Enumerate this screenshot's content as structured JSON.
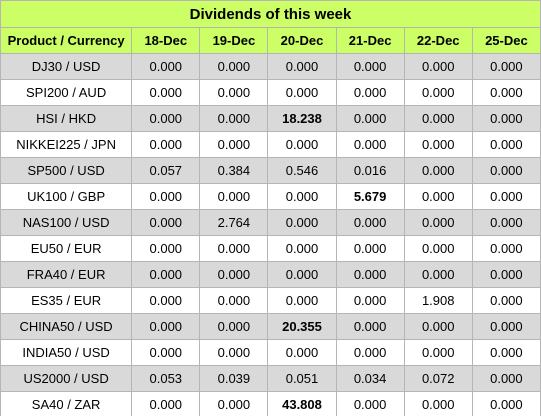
{
  "title": "Dividends of this week",
  "columns": [
    "Product / Currency",
    "18-Dec",
    "19-Dec",
    "20-Dec",
    "21-Dec",
    "22-Dec",
    "25-Dec"
  ],
  "rows": [
    {
      "product": "DJ30 / USD",
      "values": [
        "0.000",
        "0.000",
        "0.000",
        "0.000",
        "0.000",
        "0.000"
      ],
      "bold": [
        false,
        false,
        false,
        false,
        false,
        false
      ]
    },
    {
      "product": "SPI200 / AUD",
      "values": [
        "0.000",
        "0.000",
        "0.000",
        "0.000",
        "0.000",
        "0.000"
      ],
      "bold": [
        false,
        false,
        false,
        false,
        false,
        false
      ]
    },
    {
      "product": "HSI / HKD",
      "values": [
        "0.000",
        "0.000",
        "18.238",
        "0.000",
        "0.000",
        "0.000"
      ],
      "bold": [
        false,
        false,
        true,
        false,
        false,
        false
      ]
    },
    {
      "product": "NIKKEI225 / JPN",
      "values": [
        "0.000",
        "0.000",
        "0.000",
        "0.000",
        "0.000",
        "0.000"
      ],
      "bold": [
        false,
        false,
        false,
        false,
        false,
        false
      ]
    },
    {
      "product": "SP500 / USD",
      "values": [
        "0.057",
        "0.384",
        "0.546",
        "0.016",
        "0.000",
        "0.000"
      ],
      "bold": [
        false,
        false,
        false,
        false,
        false,
        false
      ]
    },
    {
      "product": "UK100 / GBP",
      "values": [
        "0.000",
        "0.000",
        "0.000",
        "5.679",
        "0.000",
        "0.000"
      ],
      "bold": [
        false,
        false,
        false,
        true,
        false,
        false
      ]
    },
    {
      "product": "NAS100 / USD",
      "values": [
        "0.000",
        "2.764",
        "0.000",
        "0.000",
        "0.000",
        "0.000"
      ],
      "bold": [
        false,
        false,
        false,
        false,
        false,
        false
      ]
    },
    {
      "product": "EU50 / EUR",
      "values": [
        "0.000",
        "0.000",
        "0.000",
        "0.000",
        "0.000",
        "0.000"
      ],
      "bold": [
        false,
        false,
        false,
        false,
        false,
        false
      ]
    },
    {
      "product": "FRA40 / EUR",
      "values": [
        "0.000",
        "0.000",
        "0.000",
        "0.000",
        "0.000",
        "0.000"
      ],
      "bold": [
        false,
        false,
        false,
        false,
        false,
        false
      ]
    },
    {
      "product": "ES35 / EUR",
      "values": [
        "0.000",
        "0.000",
        "0.000",
        "0.000",
        "1.908",
        "0.000"
      ],
      "bold": [
        false,
        false,
        false,
        false,
        false,
        false
      ]
    },
    {
      "product": "CHINA50 / USD",
      "values": [
        "0.000",
        "0.000",
        "20.355",
        "0.000",
        "0.000",
        "0.000"
      ],
      "bold": [
        false,
        false,
        true,
        false,
        false,
        false
      ]
    },
    {
      "product": "INDIA50 / USD",
      "values": [
        "0.000",
        "0.000",
        "0.000",
        "0.000",
        "0.000",
        "0.000"
      ],
      "bold": [
        false,
        false,
        false,
        false,
        false,
        false
      ]
    },
    {
      "product": "US2000 / USD",
      "values": [
        "0.053",
        "0.039",
        "0.051",
        "0.034",
        "0.072",
        "0.000"
      ],
      "bold": [
        false,
        false,
        false,
        false,
        false,
        false
      ]
    },
    {
      "product": "SA40 / ZAR",
      "values": [
        "0.000",
        "0.000",
        "43.808",
        "0.000",
        "0.000",
        "0.000"
      ],
      "bold": [
        false,
        false,
        true,
        false,
        false,
        false
      ]
    }
  ],
  "colors": {
    "header_bg": "#ccff66",
    "shaded_row_bg": "#d9d9d9",
    "plain_row_bg": "#ffffff",
    "border": "#b5b5b5"
  }
}
